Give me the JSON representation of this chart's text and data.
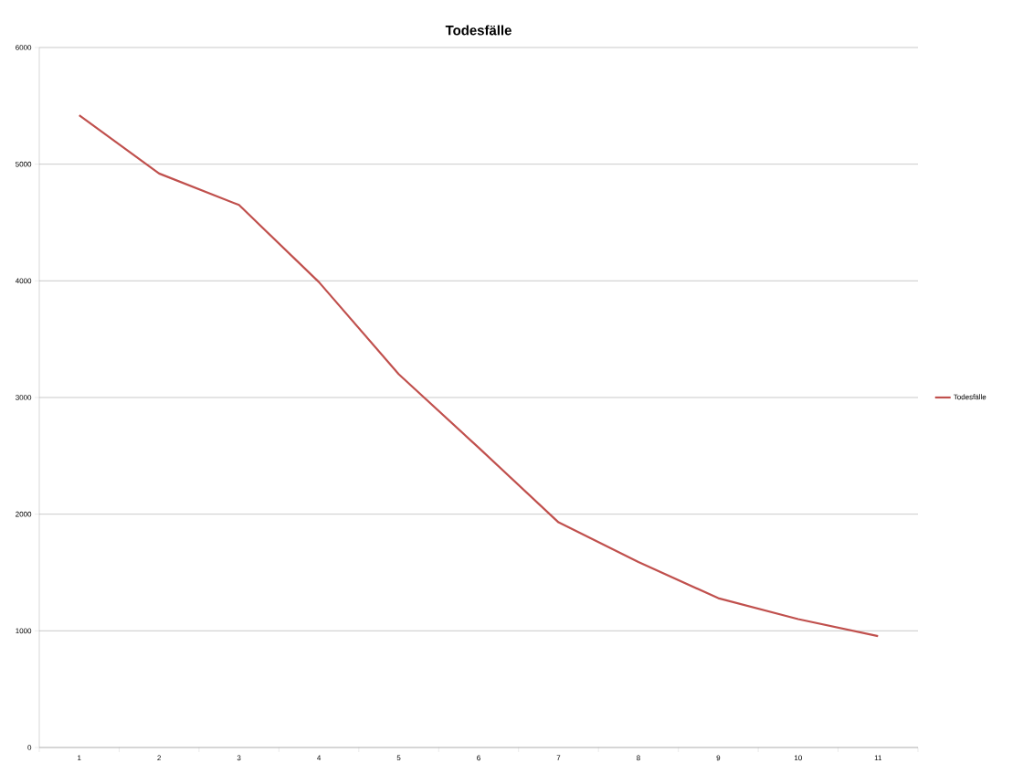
{
  "chart_data": {
    "type": "line",
    "title": "Todesfälle",
    "categories": [
      "1",
      "2",
      "3",
      "4",
      "5",
      "6",
      "7",
      "8",
      "9",
      "10",
      "11"
    ],
    "series": [
      {
        "name": "Todesfälle",
        "color": "#c0504d",
        "values": [
          5420,
          4920,
          4650,
          3990,
          3200,
          2570,
          1930,
          1590,
          1280,
          1100,
          955
        ]
      }
    ],
    "ylim": [
      0,
      6000
    ],
    "yticks": [
      0,
      1000,
      2000,
      3000,
      4000,
      5000,
      6000
    ],
    "grid": "y",
    "legend": "right",
    "marker": "none",
    "line_style": "solid"
  }
}
